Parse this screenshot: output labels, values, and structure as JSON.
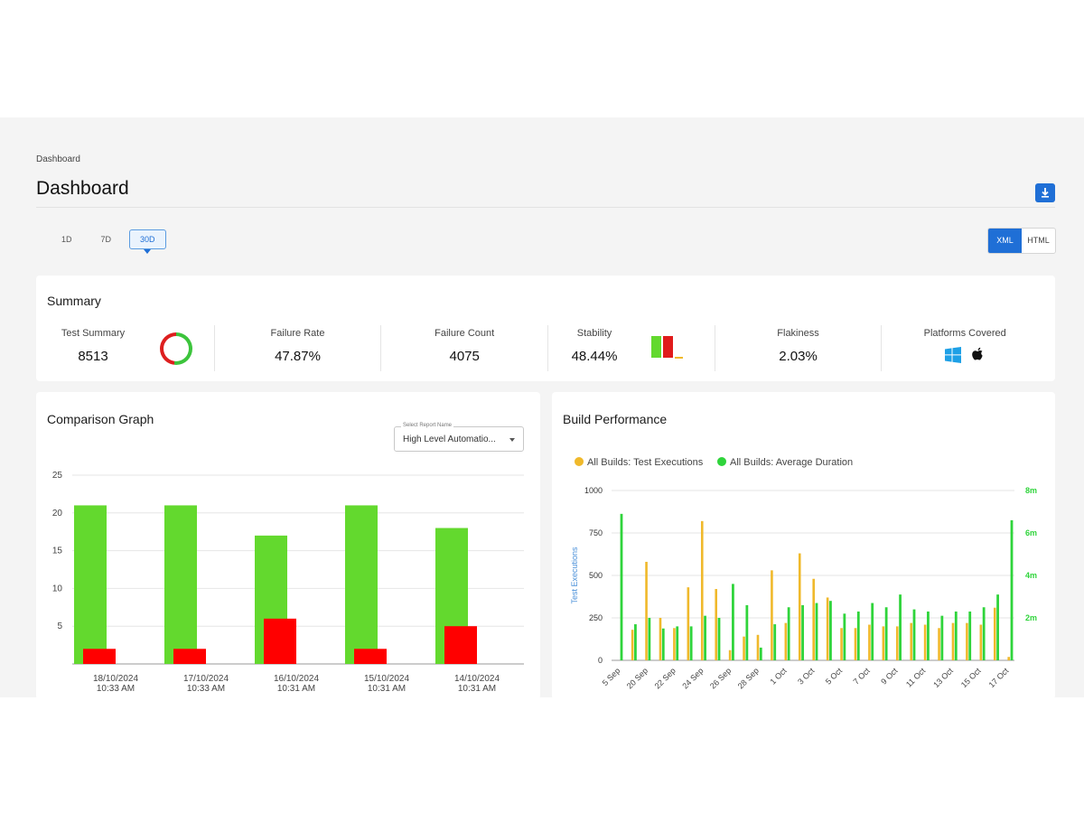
{
  "breadcrumb": "Dashboard",
  "page_title": "Dashboard",
  "range_tabs": [
    "1D",
    "7D",
    "30D"
  ],
  "range_active": "30D",
  "format_options": [
    "XML",
    "HTML"
  ],
  "format_active": "XML",
  "summary": {
    "title": "Summary",
    "metrics": [
      {
        "label": "Test Summary",
        "value": "8513"
      },
      {
        "label": "Failure Rate",
        "value": "47.87%"
      },
      {
        "label": "Failure Count",
        "value": "4075"
      },
      {
        "label": "Stability",
        "value": "48.44%"
      },
      {
        "label": "Flakiness",
        "value": "2.03%"
      },
      {
        "label": "Platforms Covered",
        "value": ""
      }
    ],
    "platform_icons": [
      "windows-icon",
      "apple-icon"
    ]
  },
  "comparison": {
    "title": "Comparison Graph",
    "select_label": "Select Report Name",
    "select_value": "High Level Automatio..."
  },
  "build": {
    "title": "Build Performance"
  },
  "colors": {
    "accent": "#1f6fd6",
    "pass": "#63d92e",
    "fail": "#ff0000",
    "executions": "#f0b92b",
    "duration": "#2fd43b"
  },
  "chart_data": [
    {
      "type": "bar",
      "title": "Comparison Graph",
      "categories": [
        "18/10/2024 10:33 AM",
        "17/10/2024 10:33 AM",
        "16/10/2024 10:31 AM",
        "15/10/2024 10:31 AM",
        "14/10/2024 10:31 AM"
      ],
      "category_lines": [
        [
          "18/10/2024",
          "10:33 AM"
        ],
        [
          "17/10/2024",
          "10:33 AM"
        ],
        [
          "16/10/2024",
          "10:31 AM"
        ],
        [
          "15/10/2024",
          "10:31 AM"
        ],
        [
          "14/10/2024",
          "10:31 AM"
        ]
      ],
      "series": [
        {
          "values": [
            21,
            21,
            17,
            21,
            18
          ],
          "color": "#63d92e"
        },
        {
          "values": [
            2,
            2,
            6,
            2,
            5
          ],
          "color": "#ff0000"
        }
      ],
      "ylim": [
        0,
        25
      ],
      "yticks": [
        0,
        5,
        10,
        15,
        20,
        25
      ],
      "ytick_labels": [
        "",
        "5",
        "10",
        "15",
        "20",
        "25"
      ],
      "grid": true
    },
    {
      "type": "bar",
      "title": "Build Performance",
      "x_tick_labels": [
        "5 Sep",
        "20 Sep",
        "22 Sep",
        "24 Sep",
        "26 Sep",
        "28 Sep",
        "1 Oct",
        "3 Oct",
        "5 Oct",
        "7 Oct",
        "9 Oct",
        "11 Oct",
        "13 Oct",
        "15 Oct",
        "17 Oct"
      ],
      "legend": [
        "All Builds: Test Executions",
        "All Builds: Average Duration"
      ],
      "legend_position": "top",
      "ylabel": "Test Executions",
      "ylim": [
        0,
        1000
      ],
      "yticks": [
        0,
        250,
        500,
        750,
        1000
      ],
      "y2ticks": [
        "2m",
        "4m",
        "6m",
        "8m"
      ],
      "y2lim": [
        0,
        8
      ],
      "series": [
        {
          "name": "All Builds: Test Executions",
          "axis": "left",
          "color": "#f0b92b",
          "values": [
            0,
            180,
            580,
            250,
            190,
            430,
            820,
            420,
            60,
            140,
            150,
            530,
            220,
            630,
            480,
            370,
            190,
            190,
            210,
            200,
            200,
            220,
            210,
            190,
            220,
            220,
            210,
            310,
            20
          ]
        },
        {
          "name": "All Builds: Average Duration",
          "axis": "right",
          "color": "#2fd43b",
          "values": [
            6.9,
            1.7,
            2.0,
            1.5,
            1.6,
            1.6,
            2.1,
            2.0,
            3.6,
            2.6,
            0.6,
            1.7,
            2.5,
            2.6,
            2.7,
            2.8,
            2.2,
            2.3,
            2.7,
            2.5,
            3.1,
            2.4,
            2.3,
            2.1,
            2.3,
            2.3,
            2.5,
            3.1,
            6.6
          ]
        }
      ],
      "grid": true
    }
  ]
}
